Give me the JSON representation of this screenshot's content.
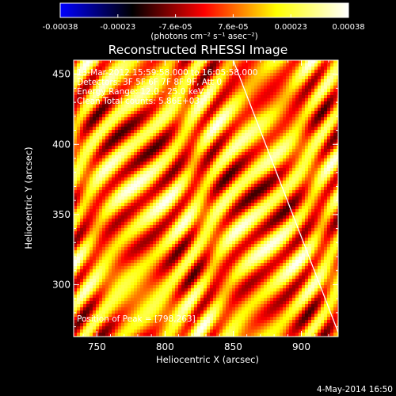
{
  "chart_data": {
    "type": "heatmap",
    "title": "Reconstructed RHESSI Image",
    "xlabel": "Heliocentric X (arcsec)",
    "ylabel": "Heliocentric Y (arcsec)",
    "xlim": [
      733,
      927
    ],
    "ylim": [
      263,
      460
    ],
    "xticks": [
      750,
      800,
      850,
      900
    ],
    "yticks": [
      300,
      350,
      400,
      450
    ],
    "colorbar": {
      "label": "(photons cm⁻² s⁻¹ asec⁻²)",
      "range": [
        -0.00038,
        0.00038
      ],
      "tick_labels": [
        "-0.00038",
        "-0.00023",
        "-7.6e-05",
        "7.6e-05",
        "0.00023",
        "0.00038"
      ],
      "colors": [
        "#0000ff",
        "#000000",
        "#ff0000",
        "#ffff00",
        "#ffffff"
      ]
    },
    "annotations": {
      "time_range": "13-Mar-2012 15:59:58.000 to 16:05:58.000",
      "detectors": "Detectors: 3F 5F 6F 7F 8F 9F, Att 0",
      "energy_range": "Energy Range: 12.0 - 25.0 keV",
      "clean_counts": "Clean    Total counts: 5.86E+03",
      "peak_position": "Position of Peak = [798,263]",
      "timestamp": "4-May-2014 16:50"
    },
    "limb_line": [
      [
        850,
        460
      ],
      [
        927,
        266
      ]
    ],
    "peak": [
      798,
      263
    ],
    "pattern": {
      "description": "diagonal fringe pattern running from upper-left to lower-right",
      "value_range": [
        -0.00015,
        0.00038
      ]
    }
  }
}
